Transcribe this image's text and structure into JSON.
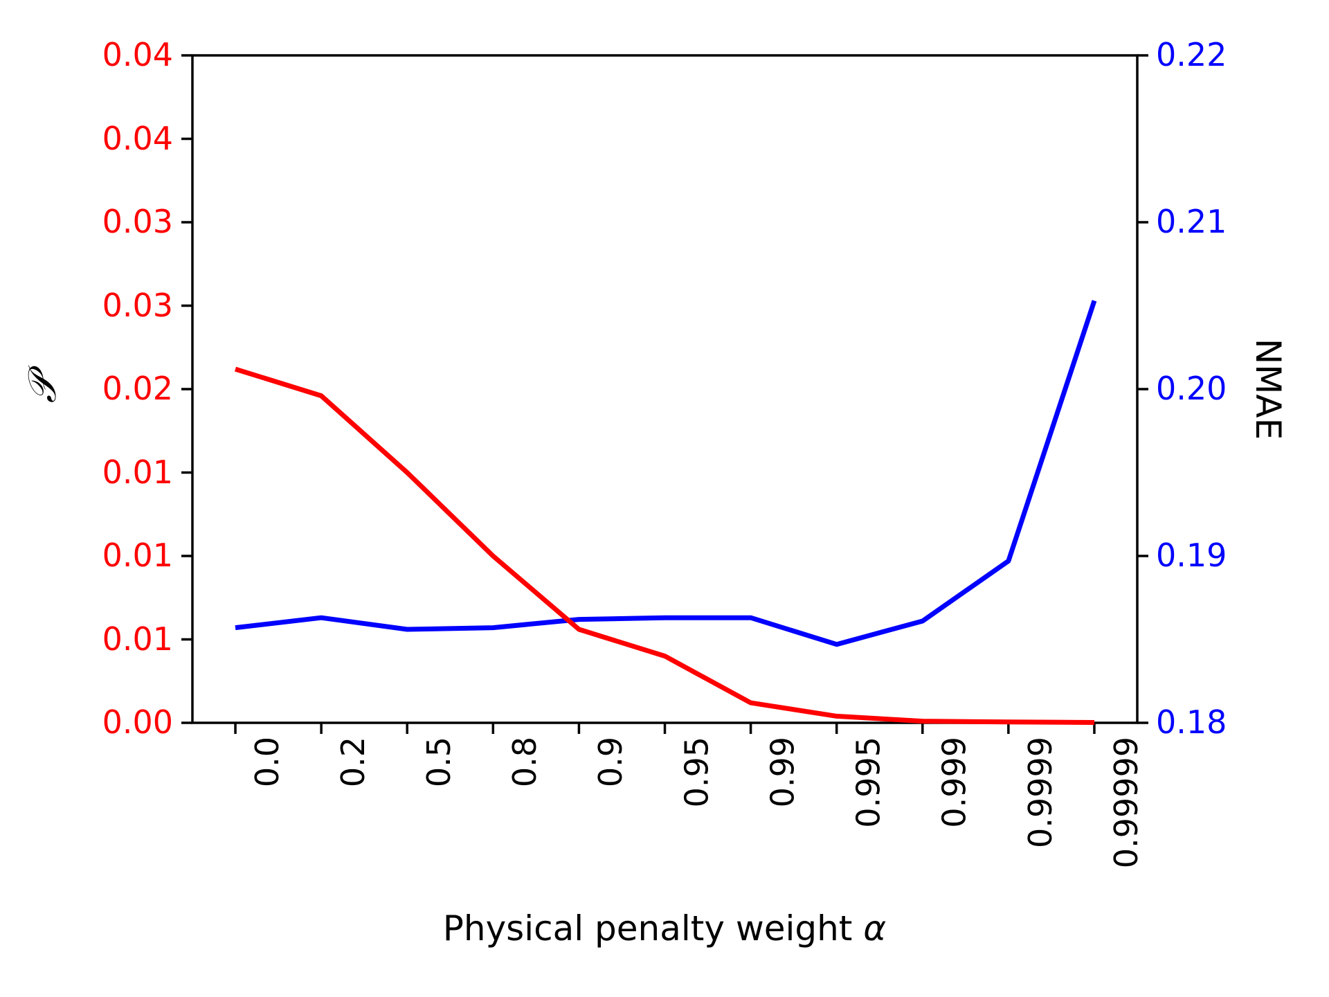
{
  "chart_data": {
    "type": "line",
    "title": "",
    "xlabel": "Physical penalty weight α",
    "xlabel_parts": {
      "text": "Physical penalty weight ",
      "symbol": "α"
    },
    "ylabel_left": "𝒫",
    "ylabel_right": "NMAE",
    "categories": [
      "0.0",
      "0.2",
      "0.5",
      "0.8",
      "0.9",
      "0.95",
      "0.99",
      "0.995",
      "0.999",
      "0.9999",
      "0.99999"
    ],
    "series": [
      {
        "name": "𝒫",
        "axis": "left",
        "color": "#ff0000",
        "values": [
          0.0212,
          0.0196,
          0.015,
          0.01,
          0.0056,
          0.004,
          0.0012,
          0.0004,
          0.0001,
          5e-05,
          2e-05
        ]
      },
      {
        "name": "NMAE",
        "axis": "right",
        "color": "#0000ff",
        "values": [
          0.1857,
          0.1863,
          0.1856,
          0.1857,
          0.1862,
          0.1863,
          0.1863,
          0.1847,
          0.1861,
          0.1897,
          0.2053
        ]
      }
    ],
    "left_axis": {
      "min": 0.0,
      "max": 0.04,
      "tick_values": [
        0.0,
        0.005,
        0.01,
        0.015,
        0.02,
        0.025,
        0.03,
        0.035,
        0.04
      ],
      "tick_labels": [
        "0.00",
        "0.01",
        "0.01",
        "0.01",
        "0.02",
        "0.03",
        "0.03",
        "0.04",
        "0.04"
      ],
      "color": "#ff0000"
    },
    "right_axis": {
      "min": 0.18,
      "max": 0.22,
      "tick_values": [
        0.18,
        0.19,
        0.2,
        0.21,
        0.22
      ],
      "tick_labels": [
        "0.18",
        "0.19",
        "0.20",
        "0.21",
        "0.22"
      ],
      "color": "#0000ff"
    },
    "grid": false,
    "legend": "none",
    "frame_color": "#000000",
    "background": "#ffffff"
  }
}
